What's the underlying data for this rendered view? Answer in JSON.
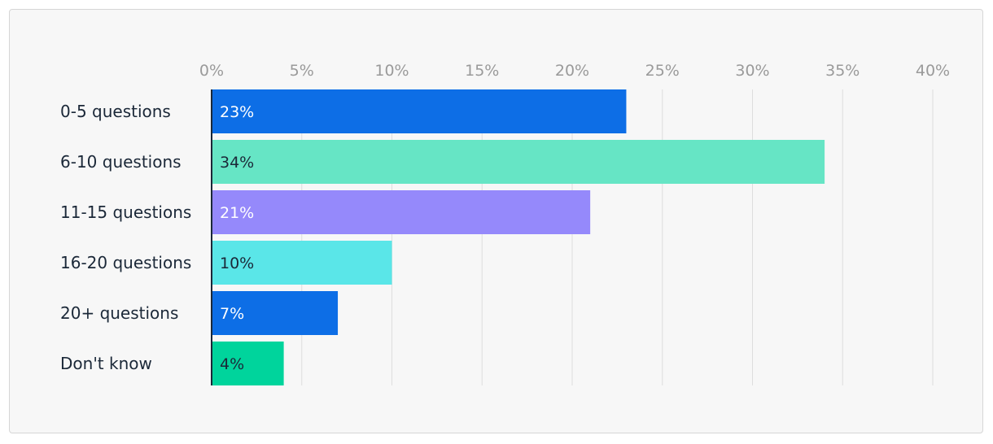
{
  "chart_data": {
    "type": "bar",
    "orientation": "horizontal",
    "categories": [
      "0-5 questions",
      "6-10 questions",
      "11-15 questions",
      "16-20 questions",
      "20+ questions",
      "Don't know"
    ],
    "values": [
      23,
      34,
      21,
      10,
      7,
      4
    ],
    "data_labels": [
      "23%",
      "34%",
      "21%",
      "10%",
      "7%",
      "4%"
    ],
    "bar_colors": [
      "#0d6ee6",
      "#66e5c5",
      "#9589fb",
      "#5ae6e8",
      "#0d6ee6",
      "#00d49c"
    ],
    "label_colors": [
      "#ffffff",
      "#1b2838",
      "#ffffff",
      "#1b2838",
      "#ffffff",
      "#1b2838"
    ],
    "xlim": [
      0,
      40
    ],
    "x_ticks": [
      0,
      5,
      10,
      15,
      20,
      25,
      30,
      35,
      40
    ],
    "x_tick_labels": [
      "0%",
      "5%",
      "10%",
      "15%",
      "20%",
      "25%",
      "30%",
      "35%",
      "40%"
    ],
    "x_axis_position": "top",
    "grid": true,
    "title": "",
    "xlabel": "",
    "ylabel": ""
  }
}
